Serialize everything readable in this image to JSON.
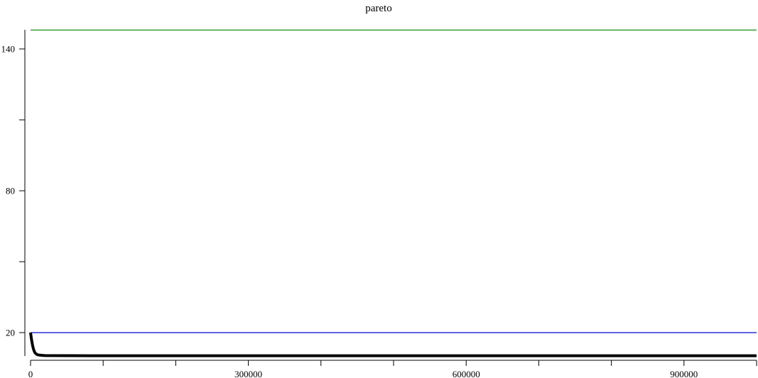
{
  "chart_data": {
    "type": "line",
    "title": "pareto",
    "xlabel": "",
    "ylabel": "",
    "xlim": [
      0,
      1000000
    ],
    "ylim": [
      10,
      150
    ],
    "x_ticks": [
      0,
      100000,
      200000,
      300000,
      400000,
      500000,
      600000,
      700000,
      800000,
      900000,
      1000000
    ],
    "x_tick_labels": [
      "0",
      "",
      "",
      "300000",
      "",
      "",
      "600000",
      "",
      "",
      "900000",
      ""
    ],
    "y_ticks": [
      20,
      50,
      80,
      110,
      140
    ],
    "y_tick_labels": [
      "20",
      "",
      "80",
      "",
      "140"
    ],
    "grid": false,
    "series": [
      {
        "color": "#008000",
        "x": [
          0,
          1000000
        ],
        "y": [
          148,
          148
        ]
      },
      {
        "color": "#0000cc",
        "x": [
          0,
          1000000
        ],
        "y": [
          20,
          20
        ]
      },
      {
        "color": "#000000",
        "x": [
          0,
          1000,
          2000,
          3000,
          4000,
          5000,
          6000,
          8000,
          10000,
          15000,
          20000,
          50000,
          100000,
          300000,
          600000,
          900000,
          1000000
        ],
        "y": [
          20,
          17.8,
          15.9,
          14.3,
          13.1,
          12.2,
          11.5,
          10.9,
          10.6,
          10.4,
          10.3,
          10.25,
          10.2,
          10.2,
          10.2,
          10.2,
          10.2
        ]
      }
    ]
  }
}
